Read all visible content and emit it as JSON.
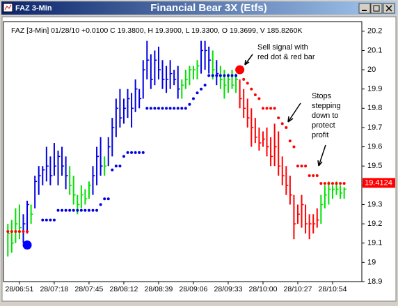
{
  "window": {
    "caption": "FAZ 3-Min"
  },
  "chart_data": {
    "type": "ohlc",
    "title": "Financial Bear 3X (Etfs)",
    "subtitle": "FAZ [3-Min] 01/28/10  +0.0100 C 19.3800, H 19.3900, L 19.3300, O 19.3699, V 185.8260K",
    "categories": [
      null,
      null,
      null,
      "28/06:51",
      null,
      null,
      null,
      null,
      null,
      null,
      null,
      null,
      "28/07:18",
      null,
      null,
      null,
      null,
      null,
      null,
      null,
      null,
      "28/07:45",
      null,
      null,
      null,
      null,
      null,
      null,
      null,
      null,
      "28/08:12",
      null,
      null,
      null,
      null,
      null,
      null,
      null,
      null,
      "28/08:39",
      null,
      null,
      null,
      null,
      null,
      null,
      null,
      null,
      "28/09:06",
      null,
      null,
      null,
      null,
      null,
      null,
      null,
      null,
      "28/09:33",
      null,
      null,
      null,
      null,
      null,
      null,
      null,
      null,
      "28/10:00",
      null,
      null,
      null,
      null,
      null,
      null,
      null,
      null,
      "28/10:27",
      null,
      null,
      null,
      null,
      null,
      null,
      null,
      null,
      "28/10:54",
      null,
      null,
      null
    ],
    "high": [
      19.2,
      19.22,
      19.28,
      19.3,
      19.25,
      19.32,
      19.3,
      19.45,
      19.5,
      19.5,
      19.6,
      19.55,
      19.62,
      19.58,
      19.6,
      19.55,
      19.5,
      19.45,
      19.35,
      19.4,
      19.38,
      19.42,
      19.5,
      19.6,
      19.65,
      19.55,
      19.65,
      19.75,
      19.85,
      19.9,
      19.85,
      19.9,
      19.88,
      19.95,
      19.9,
      20.05,
      20.15,
      20.08,
      20.1,
      20.12,
      20.05,
      20.02,
      20.05,
      20.0,
      20.02,
      19.95,
      20.0,
      20.02,
      20.02,
      20.05,
      20.15,
      20.15,
      20.12,
      20.1,
      20.05,
      20.02,
      20.0,
      19.98,
      20.0,
      19.98,
      19.95,
      19.9,
      19.85,
      19.8,
      19.75,
      19.7,
      19.68,
      19.7,
      19.65,
      19.72,
      19.68,
      19.55,
      19.5,
      19.45,
      19.35,
      19.3,
      19.35,
      19.3,
      19.25,
      19.25,
      19.28,
      19.35,
      19.4,
      19.42,
      19.4,
      19.42,
      19.4,
      19.39
    ],
    "low": [
      19.03,
      19.05,
      19.1,
      19.12,
      19.1,
      19.15,
      19.2,
      19.28,
      19.35,
      19.4,
      19.42,
      19.4,
      19.45,
      19.4,
      19.45,
      19.38,
      19.35,
      19.3,
      19.25,
      19.28,
      19.3,
      19.33,
      19.35,
      19.4,
      19.45,
      19.45,
      19.5,
      19.55,
      19.65,
      19.7,
      19.72,
      19.75,
      19.7,
      19.78,
      19.8,
      19.85,
      19.95,
      19.9,
      19.92,
      19.95,
      19.9,
      19.88,
      19.9,
      19.92,
      19.85,
      19.85,
      19.9,
      19.92,
      19.95,
      19.95,
      19.98,
      20.0,
      19.98,
      19.95,
      19.92,
      19.9,
      19.85,
      19.88,
      19.9,
      19.88,
      19.8,
      19.75,
      19.7,
      19.6,
      19.62,
      19.58,
      19.6,
      19.55,
      19.5,
      19.5,
      19.45,
      19.4,
      19.35,
      19.3,
      19.12,
      19.2,
      19.18,
      19.15,
      19.12,
      19.15,
      19.18,
      19.2,
      19.28,
      19.3,
      19.33,
      19.35,
      19.33,
      19.33
    ],
    "close": [
      19.15,
      19.1,
      19.2,
      19.18,
      19.2,
      19.3,
      19.25,
      19.42,
      19.45,
      19.48,
      19.5,
      19.45,
      19.5,
      19.55,
      19.5,
      19.45,
      19.4,
      19.35,
      19.3,
      19.35,
      19.33,
      19.4,
      19.45,
      19.55,
      19.5,
      19.5,
      19.6,
      19.7,
      19.8,
      19.75,
      19.8,
      19.85,
      19.8,
      19.9,
      19.85,
      20.0,
      20.05,
      19.95,
      20.05,
      20.0,
      19.95,
      19.95,
      19.98,
      19.95,
      19.9,
      19.92,
      19.95,
      20.0,
      20.0,
      20.02,
      20.1,
      20.1,
      20.05,
      20.0,
      19.98,
      19.95,
      19.92,
      19.95,
      19.92,
      19.95,
      19.85,
      19.8,
      19.75,
      19.7,
      19.65,
      19.62,
      19.64,
      19.6,
      19.55,
      19.6,
      19.5,
      19.45,
      19.4,
      19.35,
      19.2,
      19.25,
      19.3,
      19.2,
      19.2,
      19.2,
      19.22,
      19.3,
      19.35,
      19.38,
      19.38,
      19.38,
      19.36,
      19.38
    ],
    "bar_colors": [
      "#00e000",
      "#00e000",
      "#00e000",
      "#00e000",
      "#0000e0",
      "#0000e0",
      "#00e000",
      "#0000e0",
      "#0000e0",
      "#0000e0",
      "#0000e0",
      "#0000e0",
      "#0000e0",
      "#0000e0",
      "#0000e0",
      "#0000e0",
      "#00e000",
      "#00e000",
      "#00e000",
      "#00e000",
      "#00e000",
      "#00e000",
      "#0000e0",
      "#0000e0",
      "#0000e0",
      "#00e000",
      "#0000e0",
      "#0000e0",
      "#0000e0",
      "#0000e0",
      "#0000e0",
      "#0000e0",
      "#0000e0",
      "#0000e0",
      "#0000e0",
      "#0000e0",
      "#0000e0",
      "#0000e0",
      "#0000e0",
      "#0000e0",
      "#0000e0",
      "#0000e0",
      "#0000e0",
      "#0000e0",
      "#0000e0",
      "#00e000",
      "#00e000",
      "#00e000",
      "#00e000",
      "#00e000",
      "#0000e0",
      "#0000e0",
      "#0000e0",
      "#00e000",
      "#0000e0",
      "#00e000",
      "#00e000",
      "#00e000",
      "#00e000",
      "#00e000",
      "#ff0000",
      "#ff0000",
      "#ff0000",
      "#ff0000",
      "#ff0000",
      "#ff0000",
      "#ff0000",
      "#ff0000",
      "#ff0000",
      "#ff0000",
      "#ff0000",
      "#ff0000",
      "#ff0000",
      "#ff0000",
      "#ff0000",
      "#ff0000",
      "#ff0000",
      "#ff0000",
      "#ff0000",
      "#ff0000",
      "#ff0000",
      "#00e000",
      "#00e000",
      "#00e000",
      "#00e000",
      "#00e000",
      "#00e000",
      "#00e000"
    ],
    "series": [
      {
        "color": "#0000e0",
        "marker": "dot",
        "values": [
          null,
          null,
          null,
          null,
          null,
          null,
          null,
          null,
          null,
          19.22,
          19.22,
          19.22,
          19.22,
          19.27,
          19.27,
          19.27,
          19.27,
          19.27,
          19.27,
          19.27,
          19.27,
          19.27,
          19.27,
          19.27,
          19.3,
          19.33,
          19.33,
          19.48,
          19.5,
          19.5,
          19.55,
          19.57,
          19.57,
          19.57,
          19.57,
          19.57,
          19.8,
          19.8,
          19.8,
          19.8,
          19.8,
          19.8,
          19.8,
          19.8,
          19.8,
          19.8,
          19.8,
          19.82,
          19.85,
          19.88,
          19.9,
          19.92,
          19.97,
          19.97,
          19.97,
          19.97,
          19.97,
          19.97,
          19.97,
          19.97,
          null,
          null,
          null,
          null,
          null,
          null,
          null,
          null,
          null,
          null,
          null,
          null,
          null,
          null,
          null,
          null,
          null,
          null,
          null,
          null,
          null,
          null,
          null,
          null,
          null,
          null,
          null,
          null
        ]
      },
      {
        "color": "#ff0000",
        "marker": "dot",
        "values": [
          19.16,
          19.16,
          19.16,
          19.16,
          19.16,
          19.16,
          null,
          null,
          null,
          null,
          null,
          null,
          null,
          null,
          null,
          null,
          null,
          null,
          null,
          null,
          null,
          null,
          null,
          null,
          null,
          null,
          null,
          null,
          null,
          null,
          null,
          null,
          null,
          null,
          null,
          null,
          null,
          null,
          null,
          null,
          null,
          null,
          null,
          null,
          null,
          null,
          null,
          null,
          null,
          null,
          null,
          null,
          null,
          null,
          null,
          null,
          null,
          null,
          null,
          null,
          null,
          19.95,
          19.93,
          19.9,
          19.87,
          19.85,
          19.8,
          19.8,
          19.8,
          19.8,
          19.75,
          19.72,
          19.7,
          19.63,
          19.6,
          19.5,
          19.5,
          19.5,
          19.45,
          19.45,
          19.45,
          19.41,
          19.41,
          19.41,
          19.41,
          19.41,
          19.41,
          19.41
        ]
      },
      {
        "color": "#0000ff",
        "marker": "signal",
        "values": [
          null,
          null,
          null,
          null,
          null,
          19.09,
          null,
          null,
          null,
          null,
          null,
          null,
          null,
          null,
          null,
          null,
          null,
          null,
          null,
          null,
          null,
          null,
          null,
          null,
          null,
          null,
          null,
          null,
          null,
          null,
          null,
          null,
          null,
          null,
          null,
          null,
          null,
          null,
          null,
          null,
          null,
          null,
          null,
          null,
          null,
          null,
          null,
          null,
          null,
          null,
          null,
          null,
          null,
          null,
          null,
          null,
          null,
          null,
          null,
          null,
          null,
          null,
          null,
          null,
          null,
          null,
          null,
          null,
          null,
          null,
          null,
          null,
          null,
          null,
          null,
          null,
          null,
          null,
          null,
          null,
          null,
          null,
          null,
          null,
          null,
          null,
          null,
          null
        ]
      },
      {
        "color": "#ff0000",
        "marker": "signal",
        "values": [
          null,
          null,
          null,
          null,
          null,
          null,
          null,
          null,
          null,
          null,
          null,
          null,
          null,
          null,
          null,
          null,
          null,
          null,
          null,
          null,
          null,
          null,
          null,
          null,
          null,
          null,
          null,
          null,
          null,
          null,
          null,
          null,
          null,
          null,
          null,
          null,
          null,
          null,
          null,
          null,
          null,
          null,
          null,
          null,
          null,
          null,
          null,
          null,
          null,
          null,
          null,
          null,
          null,
          null,
          null,
          null,
          null,
          null,
          null,
          null,
          20.0,
          null,
          null,
          null,
          null,
          null,
          null,
          null,
          null,
          null,
          null,
          null,
          null,
          null,
          null,
          null,
          null,
          null,
          null,
          null,
          null,
          null,
          null,
          null,
          null,
          null,
          null,
          null
        ]
      }
    ],
    "last_price": 19.4124,
    "last_price_color": "#ff0000",
    "ylim": [
      18.9,
      20.25
    ],
    "yticks": [
      18.9,
      19,
      19.1,
      19.2,
      19.3,
      19.4,
      19.5,
      19.6,
      19.7,
      19.8,
      19.9,
      20,
      20.1,
      20.2
    ],
    "grid": false,
    "annotations": [
      {
        "lines": [
          "Sell signal with",
          "red dot & red bar"
        ]
      },
      {
        "lines": [
          "Stops",
          "stepping",
          "down to",
          "protect",
          "profit"
        ]
      }
    ]
  }
}
